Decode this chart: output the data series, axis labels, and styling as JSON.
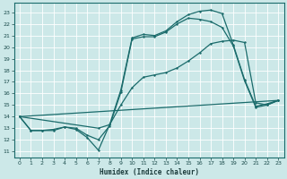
{
  "xlabel": "Humidex (Indice chaleur)",
  "bg_color": "#cce8e8",
  "grid_color": "#ffffff",
  "line_color": "#1a6b6b",
  "xlim": [
    -0.5,
    23.5
  ],
  "ylim": [
    10.5,
    23.8
  ],
  "xticks": [
    0,
    1,
    2,
    3,
    4,
    5,
    6,
    7,
    8,
    9,
    10,
    11,
    12,
    13,
    14,
    15,
    16,
    17,
    18,
    19,
    20,
    21,
    22,
    23
  ],
  "yticks": [
    11,
    12,
    13,
    14,
    15,
    16,
    17,
    18,
    19,
    20,
    21,
    22,
    23
  ],
  "figsize": [
    3.2,
    2.0
  ],
  "dpi": 100,
  "curve1_x": [
    0,
    1,
    2,
    3,
    4,
    5,
    6,
    7,
    8,
    9,
    10,
    11,
    12,
    13,
    14,
    15,
    16,
    17,
    18,
    19,
    20,
    21,
    22,
    23
  ],
  "curve1_y": [
    14,
    12.8,
    12.8,
    12.8,
    13.1,
    12.9,
    12.2,
    11.1,
    13.3,
    16.3,
    20.8,
    21.1,
    21.0,
    21.4,
    22.2,
    22.8,
    23.1,
    23.2,
    22.9,
    20.2,
    17.2,
    14.9,
    15.1,
    15.4
  ],
  "curve2_x": [
    0,
    1,
    2,
    3,
    4,
    5,
    6,
    7,
    8,
    9,
    10,
    11,
    12,
    13,
    14,
    15,
    16,
    17,
    18,
    19,
    20,
    21,
    22,
    23
  ],
  "curve2_y": [
    14,
    12.8,
    12.8,
    12.9,
    13.1,
    13.0,
    12.4,
    12.0,
    13.2,
    16.1,
    20.7,
    20.9,
    20.9,
    21.3,
    22.0,
    22.5,
    22.4,
    22.2,
    21.7,
    20.1,
    17.1,
    14.8,
    15.0,
    15.4
  ],
  "line3_x": [
    0,
    7,
    8,
    9,
    10,
    11,
    12,
    13,
    14,
    15,
    16,
    17,
    18,
    19,
    20,
    21,
    22,
    23
  ],
  "line3_y": [
    14,
    13.0,
    13.3,
    15.0,
    16.5,
    17.4,
    17.6,
    17.8,
    18.2,
    18.8,
    19.5,
    20.3,
    20.5,
    20.6,
    20.4,
    15.2,
    15.0,
    15.4
  ],
  "line4_x": [
    0,
    23
  ],
  "line4_y": [
    14.0,
    15.4
  ]
}
